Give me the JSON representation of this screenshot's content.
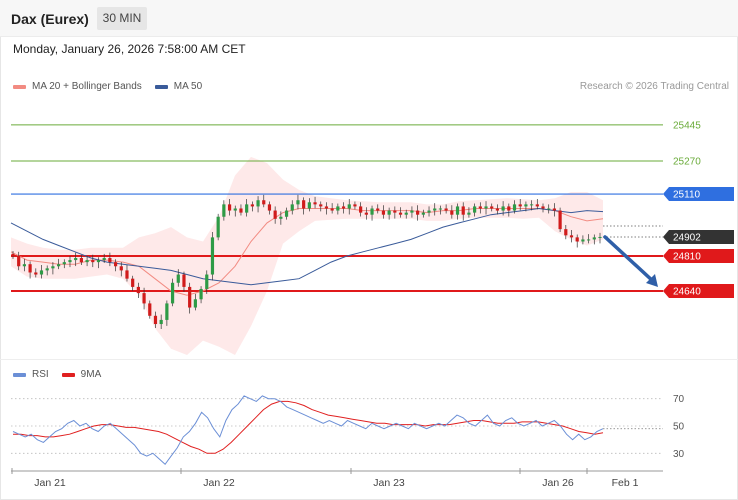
{
  "header": {
    "title": "Dax (Eurex)",
    "interval": "30 MIN",
    "datetime": "Monday, January 26, 2026 7:58:00 AM CET"
  },
  "legend": {
    "items": [
      {
        "label": "MA 20 + Bollinger Bands",
        "color": "#f28b82"
      },
      {
        "label": "MA 50",
        "color": "#3a5b9a"
      }
    ],
    "credit": "Research © 2026 Trading Central"
  },
  "rsi_legend": {
    "items": [
      {
        "label": "RSI",
        "color": "#6b8fd6"
      },
      {
        "label": "9MA",
        "color": "#e02020"
      }
    ]
  },
  "chart_data": [
    {
      "type": "candlestick",
      "x_labels": [
        "Jan 21",
        "Jan 22",
        "Jan 23",
        "Jan 26",
        "Feb 1"
      ],
      "ylim": [
        24330,
        25590
      ],
      "price_levels": [
        {
          "value": 25445,
          "label": "25445",
          "color": "#6aab3a",
          "style": "target"
        },
        {
          "value": 25270,
          "label": "25270",
          "color": "#6aab3a",
          "style": "target"
        },
        {
          "value": 25110,
          "label": "25110",
          "color": "#2f6fe0",
          "style": "resistance"
        },
        {
          "value": 24902,
          "label": "24902",
          "color": "#333333",
          "style": "last"
        },
        {
          "value": 24810,
          "label": "24810",
          "color": "#e0191b",
          "style": "support"
        },
        {
          "value": 24640,
          "label": "24640",
          "color": "#e0191b",
          "style": "support"
        }
      ],
      "projection": {
        "from": 24902,
        "to": 24640
      },
      "closes": [
        24810,
        24760,
        24770,
        24730,
        24720,
        24740,
        24750,
        24760,
        24770,
        24780,
        24790,
        24800,
        24780,
        24790,
        24780,
        24790,
        24800,
        24780,
        24760,
        24740,
        24700,
        24660,
        24630,
        24580,
        24520,
        24480,
        24500,
        24580,
        24680,
        24720,
        24660,
        24560,
        24600,
        24650,
        24720,
        24900,
        25000,
        25060,
        25030,
        25040,
        25020,
        25060,
        25050,
        25080,
        25060,
        25030,
        24990,
        25000,
        25030,
        25060,
        25080,
        25040,
        25070,
        25060,
        25050,
        25040,
        25030,
        25050,
        25040,
        25060,
        25050,
        25020,
        25010,
        25040,
        25030,
        25010,
        25030,
        25020,
        25010,
        25020,
        25030,
        25010,
        25020,
        25030,
        25040,
        25040,
        25030,
        25010,
        25050,
        25010,
        25020,
        25050,
        25040,
        25050,
        25040,
        25030,
        25050,
        25030,
        25060,
        25050,
        25060,
        25060,
        25050,
        25040,
        25040,
        25030,
        24940,
        24910,
        24900,
        24880,
        24890,
        24890,
        24900,
        24902
      ],
      "ma50": [
        24970,
        24930,
        24890,
        24860,
        24830,
        24800,
        24780,
        24770,
        24760,
        24750,
        24740,
        24720,
        24700,
        24690,
        24680,
        24670,
        24680,
        24690,
        24700,
        24740,
        24780,
        24810,
        24830,
        24850,
        24870,
        24890,
        24920,
        24950,
        24970,
        24990,
        25010,
        25020,
        25030,
        25040,
        25030,
        25020,
        25030,
        25025
      ],
      "ma20": [
        24830,
        24790,
        24780,
        24770,
        24770,
        24790,
        24790,
        24780,
        24760,
        24700,
        24640,
        24620,
        24640,
        24680,
        24760,
        24880,
        24970,
        25020,
        25040,
        25040,
        25040,
        25040,
        25030,
        25030,
        25030,
        25030,
        25020,
        25030,
        25030,
        25040,
        25040,
        25040,
        25040,
        25040,
        25030,
        25000,
        24980,
        24990
      ],
      "bb_upper": [
        24900,
        24870,
        24850,
        24840,
        24840,
        24850,
        24850,
        24850,
        24900,
        24920,
        24950,
        24900,
        24880,
        25000,
        25200,
        25290,
        25260,
        25180,
        25130,
        25100,
        25090,
        25080,
        25075,
        25070,
        25070,
        25070,
        25060,
        25060,
        25075,
        25080,
        25085,
        25090,
        25085,
        25080,
        25090,
        25120,
        25120,
        25080
      ],
      "bb_lower": [
        24760,
        24710,
        24700,
        24700,
        24700,
        24710,
        24720,
        24700,
        24620,
        24460,
        24360,
        24330,
        24400,
        24370,
        24330,
        24470,
        24640,
        24870,
        24930,
        24980,
        24985,
        24990,
        24990,
        24990,
        24990,
        24990,
        24980,
        24980,
        24990,
        24995,
        24995,
        24995,
        24990,
        24995,
        24930,
        24890,
        24860,
        24890
      ]
    },
    {
      "type": "line",
      "name": "RSI",
      "ylim": [
        20,
        80
      ],
      "y_ticks": [
        70,
        50,
        30
      ],
      "rsi": [
        46,
        44,
        42,
        44,
        40,
        38,
        42,
        46,
        48,
        52,
        54,
        50,
        52,
        48,
        46,
        50,
        52,
        48,
        44,
        40,
        36,
        30,
        28,
        30,
        26,
        22,
        28,
        34,
        42,
        46,
        52,
        60,
        56,
        48,
        42,
        54,
        62,
        66,
        72,
        70,
        68,
        72,
        70,
        70,
        68,
        64,
        62,
        60,
        58,
        56,
        54,
        52,
        54,
        52,
        50,
        54,
        52,
        50,
        48,
        52,
        50,
        48,
        50,
        52,
        50,
        48,
        52,
        50,
        48,
        50,
        52,
        50,
        54,
        58,
        56,
        52,
        50,
        54,
        58,
        52,
        50,
        54,
        56,
        52,
        50,
        52,
        54,
        50,
        52,
        54,
        50,
        44,
        40,
        44,
        40,
        42,
        46,
        48
      ],
      "ma9": [
        44,
        44,
        43,
        43,
        42,
        42,
        43,
        44,
        46,
        48,
        50,
        51,
        51,
        50,
        49,
        49,
        48,
        47,
        46,
        44,
        41,
        38,
        35,
        33,
        30,
        30,
        33,
        38,
        44,
        50,
        56,
        62,
        66,
        68,
        68,
        67,
        65,
        62,
        60,
        58,
        57,
        56,
        55,
        54,
        53,
        52,
        52,
        51,
        51,
        51,
        51,
        50,
        51,
        51,
        51,
        52,
        53,
        54,
        54,
        53,
        52,
        52,
        52,
        53,
        53,
        53,
        52,
        51,
        50,
        48,
        46,
        45,
        44,
        45
      ]
    }
  ]
}
